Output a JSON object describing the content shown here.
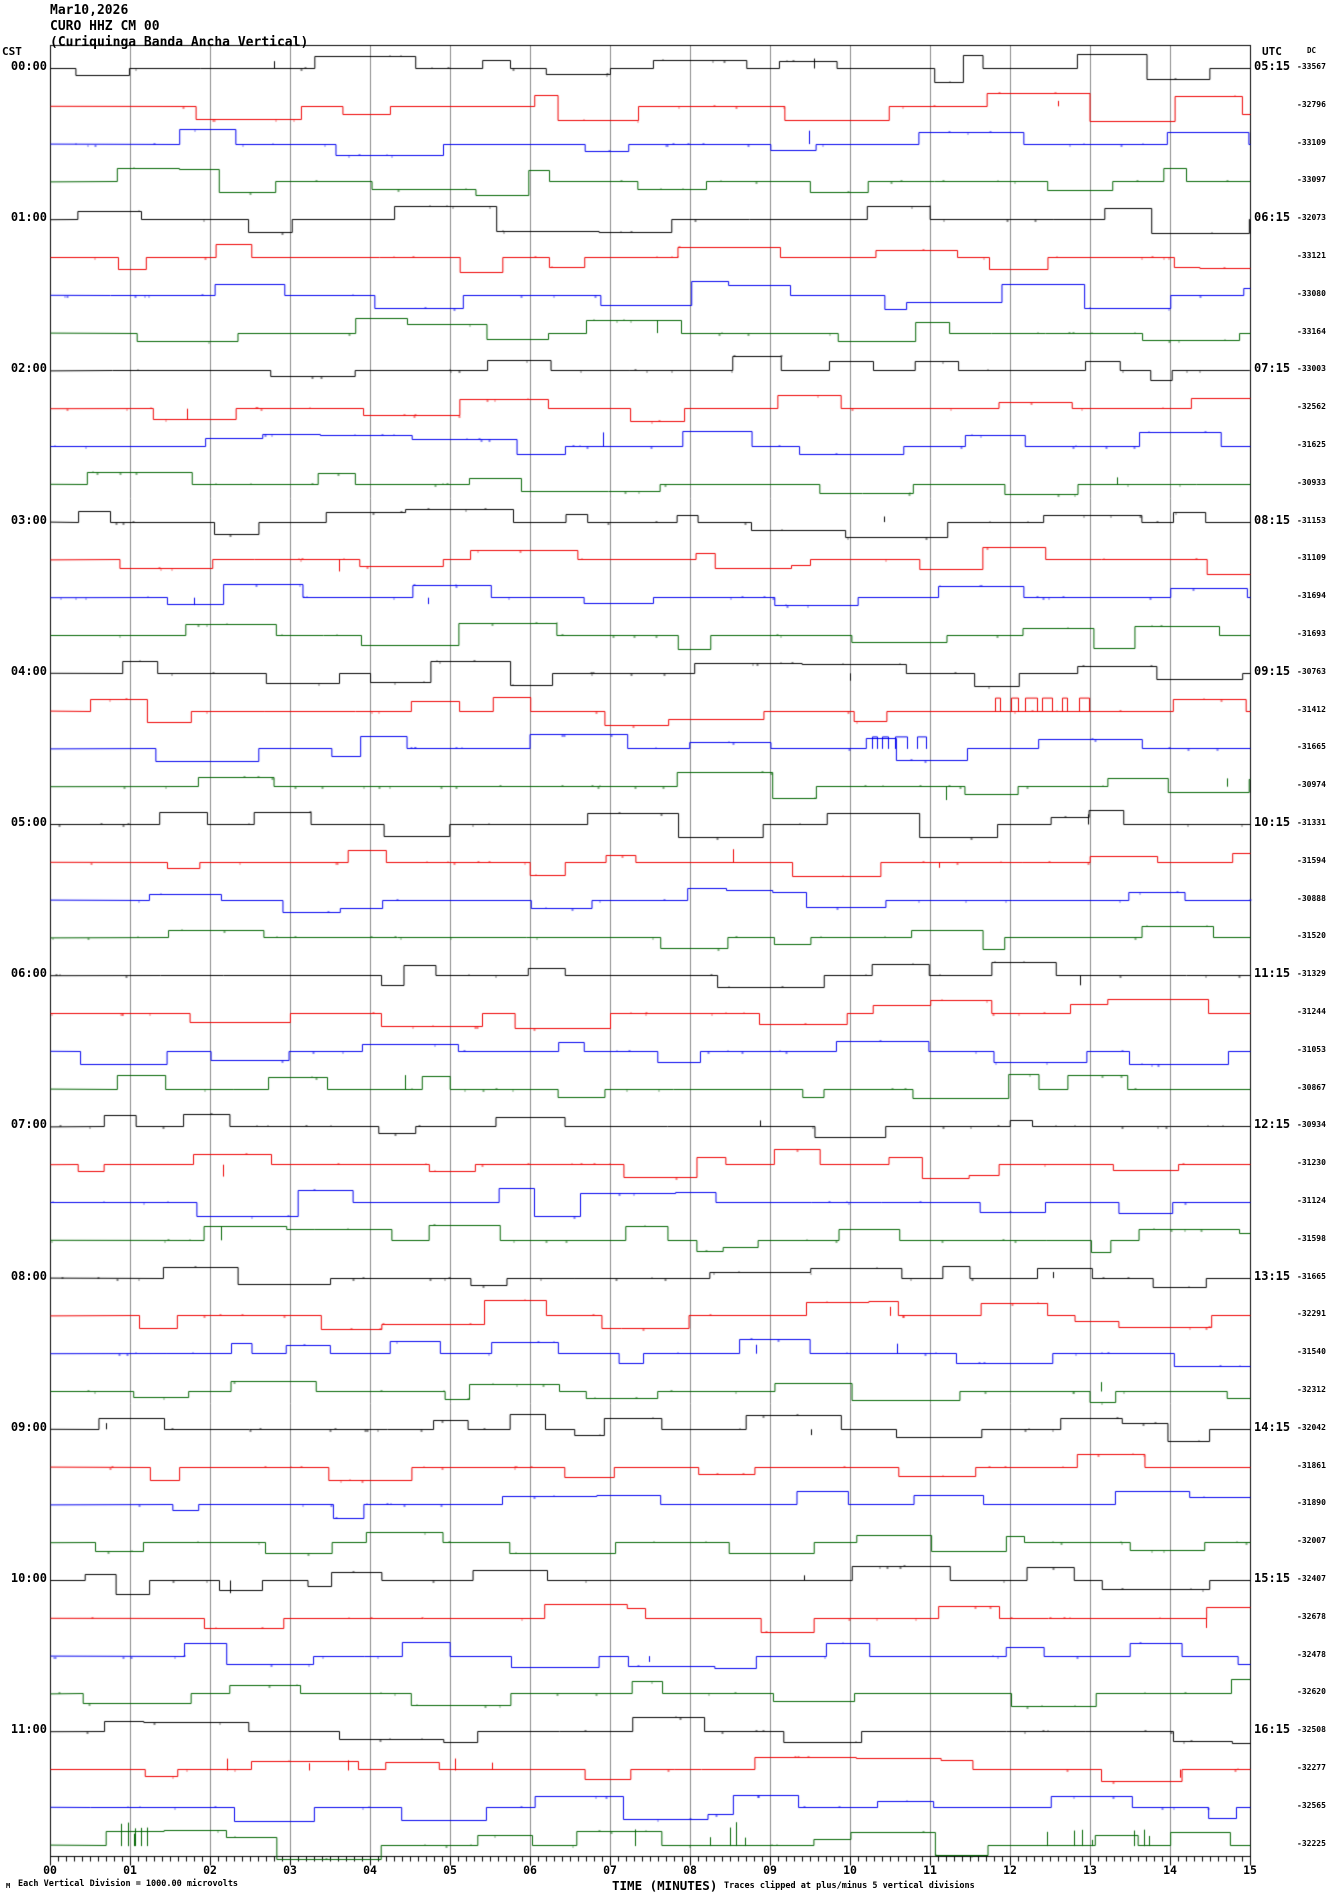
{
  "title": {
    "line1": "Mar10,2026",
    "line2": "CURO HHZ CM 00",
    "line3": "(Curiquinga Banda Ancha Vertical)"
  },
  "axes": {
    "left_header": "CST",
    "right_header": "UTC",
    "dc_header": "DC",
    "x_title": "TIME (MINUTES)",
    "x_ticks": [
      "00",
      "01",
      "02",
      "03",
      "04",
      "05",
      "06",
      "07",
      "08",
      "09",
      "10",
      "11",
      "12",
      "13",
      "14",
      "15"
    ],
    "footer_left_mark": "M",
    "footer_scale": "Each Vertical Division = 1000.00 microvolts",
    "footer_clip": "Traces clipped at plus/minus 5 vertical divisions"
  },
  "chart_data": {
    "type": "line",
    "subtype": "helicorder-seismogram",
    "title": "CURO HHZ CM 00 (Curiquinga Banda Ancha Vertical) Mar10,2026",
    "xlabel": "TIME (MINUTES)",
    "x_range_minutes": [
      0,
      15
    ],
    "minutes_per_line": 15,
    "grid": "vertical gridlines at every minute",
    "trace_colors_cycle": [
      "#000000",
      "#ee0000",
      "#0000ee",
      "#006400"
    ],
    "grid_color": "#8a8a8a",
    "border_color": "#000000",
    "background_color": "#ffffff",
    "traces_per_hour": 4,
    "hours": [
      {
        "cst": "00:00",
        "utc": "05:15",
        "dc": [
          -33567,
          -32796,
          -33109,
          -33097
        ]
      },
      {
        "cst": "01:00",
        "utc": "06:15",
        "dc": [
          -32073,
          -33121,
          -33080,
          -33164
        ]
      },
      {
        "cst": "02:00",
        "utc": "07:15",
        "dc": [
          -33003,
          -32562,
          -31625,
          -30933
        ]
      },
      {
        "cst": "03:00",
        "utc": "08:15",
        "dc": [
          -31153,
          -31109,
          -31694,
          -31693
        ]
      },
      {
        "cst": "04:00",
        "utc": "09:15",
        "dc": [
          -30763,
          -31412,
          -31665,
          -30974
        ]
      },
      {
        "cst": "05:00",
        "utc": "10:15",
        "dc": [
          -31331,
          -31594,
          -30888,
          -31520
        ]
      },
      {
        "cst": "06:00",
        "utc": "11:15",
        "dc": [
          -31329,
          -31244,
          -31053,
          -30867
        ]
      },
      {
        "cst": "07:00",
        "utc": "12:15",
        "dc": [
          -30934,
          -31230,
          -31124,
          -31598
        ]
      },
      {
        "cst": "08:00",
        "utc": "13:15",
        "dc": [
          -31665,
          -32291,
          -31540,
          -32312
        ]
      },
      {
        "cst": "09:00",
        "utc": "14:15",
        "dc": [
          -32042,
          -31861,
          -31890,
          -32007
        ]
      },
      {
        "cst": "10:00",
        "utc": "15:15",
        "dc": [
          -32407,
          -32678,
          -32478,
          -32620
        ]
      },
      {
        "cst": "11:00",
        "utc": "16:15",
        "dc": [
          -32508,
          -32277,
          -32565,
          -32225
        ]
      }
    ],
    "notes": "Traces are step-like telemetry square waves, clipped at plus/minus 5 vertical divisions; each vertical division = 1000.00 microvolts"
  }
}
